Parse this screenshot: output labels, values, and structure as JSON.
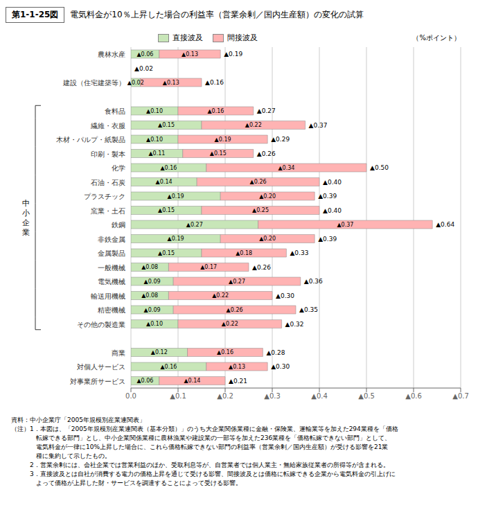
{
  "chart_data": {
    "type": "bar",
    "figure_number": "第1-1-25図",
    "title": "電気料金が10％上昇した場合の利益率（営業余剰／国内生産額）の変化の試算",
    "xlabel": "（%ポイント）",
    "orientation": "horizontal",
    "stacked": true,
    "grid": true,
    "legend": "top",
    "data_labels": true,
    "categories": [
      "農林水産",
      null,
      "建設（住宅建築等）",
      null,
      "食料品",
      "繊維・衣服",
      "木材・パルプ・紙製品",
      "印刷・製本",
      "化学",
      "石油・石炭",
      "プラスチック",
      "窯業・土石",
      "鉄鋼",
      "非鉄金属",
      "金属製品",
      "一般機械",
      "電気機械",
      "輸送用機械",
      "精密機械",
      "その他の製造業",
      null,
      "商業",
      "対個人サービス",
      "対事業所サービス"
    ],
    "series": [
      {
        "name": "直接波及",
        "color": "#c8e6b8",
        "values": [
          0.06,
          null,
          0.02,
          null,
          0.1,
          0.15,
          0.1,
          0.11,
          0.16,
          0.14,
          0.19,
          0.15,
          0.27,
          0.19,
          0.15,
          0.08,
          0.09,
          0.08,
          0.09,
          0.1,
          null,
          0.12,
          0.16,
          0.06
        ],
        "value_labels": [
          "▲0.06",
          null,
          "▲0.02",
          null,
          "▲0.10",
          "▲0.15",
          "▲0.10",
          "▲0.11",
          "▲0.16",
          "▲0.14",
          "▲0.19",
          "▲0.15",
          "▲0.27",
          "▲0.19",
          "▲0.15",
          "▲0.08",
          "▲0.09",
          "▲0.08",
          "▲0.09",
          "▲0.10",
          null,
          "▲0.12",
          "▲0.16",
          "▲0.06"
        ]
      },
      {
        "name": "間接波及",
        "color": "#ffb3b3",
        "values": [
          0.13,
          null,
          0.13,
          null,
          0.16,
          0.22,
          0.19,
          0.15,
          0.34,
          0.26,
          0.2,
          0.25,
          0.37,
          0.2,
          0.18,
          0.17,
          0.27,
          0.22,
          0.26,
          0.22,
          null,
          0.16,
          0.13,
          0.14
        ],
        "value_labels": [
          "▲0.13",
          null,
          "▲0.13",
          null,
          "▲0.16",
          "▲0.22",
          "▲0.19",
          "▲0.15",
          "▲0.34",
          "▲0.26",
          "▲0.20",
          "▲0.25",
          "▲0.37",
          "▲0.20",
          "▲0.18",
          "▲0.17",
          "▲0.27",
          "▲0.22",
          "▲0.26",
          "▲0.22",
          null,
          "▲0.16",
          "▲0.13",
          "▲0.14"
        ]
      }
    ],
    "total_labels": [
      "▲0.19",
      null,
      "▲0.16",
      null,
      "▲0.27",
      "▲0.37",
      "▲0.29",
      "▲0.26",
      "▲0.50",
      "▲0.40",
      "▲0.39",
      "▲0.40",
      "▲0.64",
      "▲0.39",
      "▲0.33",
      "▲0.26",
      "▲0.36",
      "▲0.30",
      "▲0.35",
      "▲0.32",
      null,
      "▲0.28",
      "▲0.30",
      "▲0.21"
    ],
    "annotations": [
      {
        "text": "▲0.02",
        "category_index": 1
      }
    ],
    "bracket": {
      "label": "中\n小\n企\n業",
      "from": 4,
      "to": 19
    },
    "xlim": [
      0,
      0.7
    ],
    "xticks": [
      {
        "value": 0,
        "label": "0.0"
      },
      {
        "value": 0.1,
        "label": "▲0.1"
      },
      {
        "value": 0.2,
        "label": "▲0.2"
      },
      {
        "value": 0.3,
        "label": "▲0.3"
      },
      {
        "value": 0.4,
        "label": "▲0.4"
      },
      {
        "value": 0.5,
        "label": "▲0.5"
      },
      {
        "value": 0.6,
        "label": "▲0.6"
      },
      {
        "value": 0.7,
        "label": "▲0.7"
      }
    ],
    "notes": [
      "資料：中小企業庁「2005年規模別産業連関表」",
      "（注）1．本図は、「2005年規模別産業連関表（基本分類）」のうち大企業関係業種に金融・保険業、運輸業等を加えた294業種を「価格",
      "　　　　転嫁できる部門」とし、中小企業関係業種に農林漁業や建設業の一部等を加えた236業種を「価格転嫁できない部門」として、",
      "　　　　電気料金が一律に10%上昇した場合に、これら価格転嫁できない部門の利益率（営業余剰／国内生産額）が受ける影響を21業",
      "　　　　種に集約して示したもの。",
      "　　　2．営業余剰には、会社企業では営業利益のほか、受取利息等が、自営業者では個人業主・無給家族従業者の所得等が含まれる。",
      "　　　3．直接波及とは自社が消費する電力の価格上昇を通じて受ける影響、間接波及とは価格に転嫁できる企業から電気料金の引上げに",
      "　　　　よって価格が上昇した財・サービスを調達することによって受ける影響。"
    ]
  }
}
